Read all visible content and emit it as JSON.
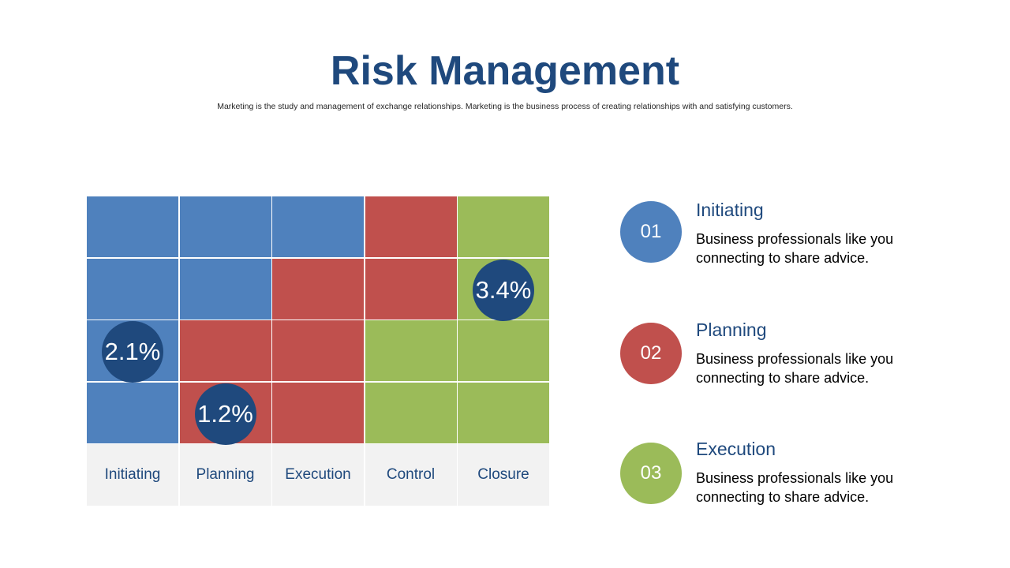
{
  "title": "Risk Management",
  "subtitle": "Marketing is the study and management of exchange relationships. Marketing is the business process of creating relationships with and satisfying customers.",
  "colors": {
    "blue": "#4f81bd",
    "red": "#c0504d",
    "green": "#9bbb59",
    "navy": "#1f497d",
    "category_bg": "#f2f2f2"
  },
  "matrix": {
    "rows": [
      [
        "blue",
        "blue",
        "blue",
        "red",
        "green"
      ],
      [
        "blue",
        "blue",
        "red",
        "red",
        "green"
      ],
      [
        "blue",
        "red",
        "red",
        "green",
        "green"
      ],
      [
        "blue",
        "red",
        "red",
        "green",
        "green"
      ]
    ],
    "categories": [
      "Initiating",
      "Planning",
      "Execution",
      "Control",
      "Closure"
    ],
    "markers": [
      {
        "label": "3.4%",
        "row": 1,
        "col": 4
      },
      {
        "label": "2.1%",
        "row": 2,
        "col": 0
      },
      {
        "label": "1.2%",
        "row": 3,
        "col": 1
      }
    ]
  },
  "legend": [
    {
      "number": "01",
      "heading": "Initiating",
      "color": "blue",
      "desc_line1": "Business professionals like you",
      "desc_line2": "connecting to share advice."
    },
    {
      "number": "02",
      "heading": "Planning",
      "color": "red",
      "desc_line1": "Business professionals like you",
      "desc_line2": "connecting to share advice."
    },
    {
      "number": "03",
      "heading": "Execution",
      "color": "green",
      "desc_line1": "Business professionals like you",
      "desc_line2": "connecting to share advice."
    }
  ]
}
